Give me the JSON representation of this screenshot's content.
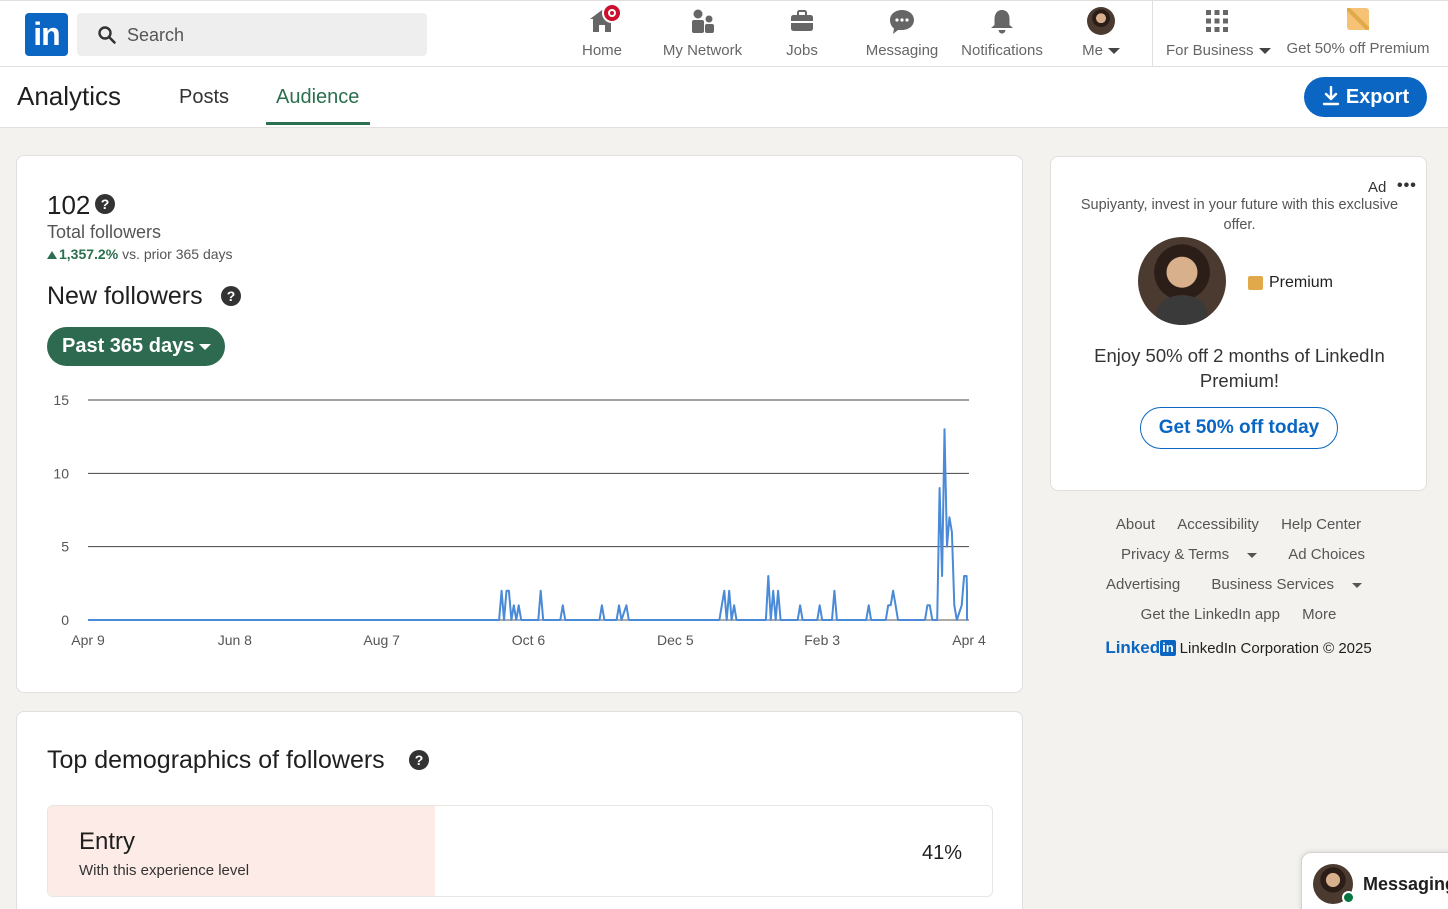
{
  "nav": {
    "logo_text": "in",
    "search_placeholder": "Search",
    "items": [
      {
        "label": "Home"
      },
      {
        "label": "My Network"
      },
      {
        "label": "Jobs"
      },
      {
        "label": "Messaging"
      },
      {
        "label": "Notifications"
      },
      {
        "label": "Me"
      },
      {
        "label": "For Business"
      },
      {
        "label": "Get 50% off Premium"
      }
    ]
  },
  "subheader": {
    "title": "Analytics",
    "tabs": [
      {
        "label": "Posts"
      },
      {
        "label": "Audience"
      }
    ],
    "active_tab": "Audience",
    "export_label": "Export"
  },
  "followers": {
    "total": "102",
    "total_label": "Total followers",
    "growth_value": "1,357.2%",
    "growth_suffix": "vs. prior 365 days",
    "new_title": "New followers",
    "range_label": "Past 365 days"
  },
  "chart_data": {
    "type": "line",
    "x_tick_labels": [
      "Apr 9",
      "Jun 8",
      "Aug 7",
      "Oct 6",
      "Dec 5",
      "Feb 3",
      "Apr 4"
    ],
    "ylim": [
      0,
      15
    ],
    "y_ticks": [
      0,
      5,
      10,
      15
    ],
    "grid": true,
    "legend": "none",
    "series_color": "#4a8ad6",
    "series": [
      {
        "points": [
          [
            0,
            0
          ],
          [
            168,
            0
          ],
          [
            169,
            2
          ],
          [
            170,
            0
          ],
          [
            171,
            2
          ],
          [
            172,
            2
          ],
          [
            173,
            0
          ],
          [
            174,
            1
          ],
          [
            175,
            0
          ],
          [
            176,
            1
          ],
          [
            177,
            0
          ],
          [
            184,
            0
          ],
          [
            185,
            2
          ],
          [
            186,
            0
          ],
          [
            193,
            0
          ],
          [
            194,
            1
          ],
          [
            195,
            0
          ],
          [
            209,
            0
          ],
          [
            210,
            1
          ],
          [
            211,
            0
          ],
          [
            216,
            0
          ],
          [
            217,
            1
          ],
          [
            218,
            0
          ],
          [
            220,
            1
          ],
          [
            221,
            0
          ],
          [
            258,
            0
          ],
          [
            259,
            1
          ],
          [
            260,
            2
          ],
          [
            261,
            0
          ],
          [
            262,
            2
          ],
          [
            263,
            0
          ],
          [
            264,
            1
          ],
          [
            265,
            0
          ],
          [
            277,
            0
          ],
          [
            278,
            3
          ],
          [
            279,
            0
          ],
          [
            280,
            2
          ],
          [
            281,
            0
          ],
          [
            282,
            2
          ],
          [
            283,
            0
          ],
          [
            290,
            0
          ],
          [
            291,
            1
          ],
          [
            292,
            0
          ],
          [
            298,
            0
          ],
          [
            299,
            1
          ],
          [
            300,
            0
          ],
          [
            304,
            0
          ],
          [
            305,
            2
          ],
          [
            306,
            0
          ],
          [
            318,
            0
          ],
          [
            319,
            1
          ],
          [
            320,
            0
          ],
          [
            326,
            0
          ],
          [
            327,
            1
          ],
          [
            328,
            1
          ],
          [
            329,
            2
          ],
          [
            330,
            1
          ],
          [
            331,
            0
          ],
          [
            342,
            0
          ],
          [
            343,
            1
          ],
          [
            344,
            1
          ],
          [
            345,
            0
          ],
          [
            347,
            0
          ],
          [
            348,
            9
          ],
          [
            349,
            3
          ],
          [
            350,
            13
          ],
          [
            351,
            5
          ],
          [
            352,
            7
          ],
          [
            353,
            6
          ],
          [
            354,
            1
          ],
          [
            355,
            0
          ],
          [
            357,
            1
          ],
          [
            358,
            3
          ],
          [
            359,
            3
          ],
          [
            360,
            2
          ],
          [
            361,
            1
          ],
          [
            362,
            1
          ],
          [
            363,
            0
          ],
          [
            364,
            2
          ],
          [
            365,
            0
          ]
        ]
      }
    ]
  },
  "demographics": {
    "title": "Top demographics of followers",
    "items": [
      {
        "name": "Entry",
        "subtitle": "With this experience level",
        "percent_label": "41%",
        "percent": 41
      }
    ]
  },
  "ad": {
    "label": "Ad",
    "text": "Supiyanty, invest in your future with this exclusive offer.",
    "premium_label": "Premium",
    "offer": "Enjoy 50% off 2 months of LinkedIn Premium!",
    "cta": "Get 50% off today",
    "badge_color": "#e2a94b"
  },
  "footer": {
    "links": [
      "About",
      "Accessibility",
      "Help Center",
      "Privacy & Terms",
      "Ad Choices",
      "Advertising",
      "Business Services",
      "Get the LinkedIn app",
      "More"
    ],
    "brand_word": "Linked",
    "brand_box": "in",
    "copyright": "LinkedIn Corporation © 2025"
  },
  "messaging_widget": {
    "label": "Messaging"
  },
  "colors": {
    "brand": "#0a66c2",
    "green": "#2d6a4f",
    "notification": "#cb112d"
  }
}
